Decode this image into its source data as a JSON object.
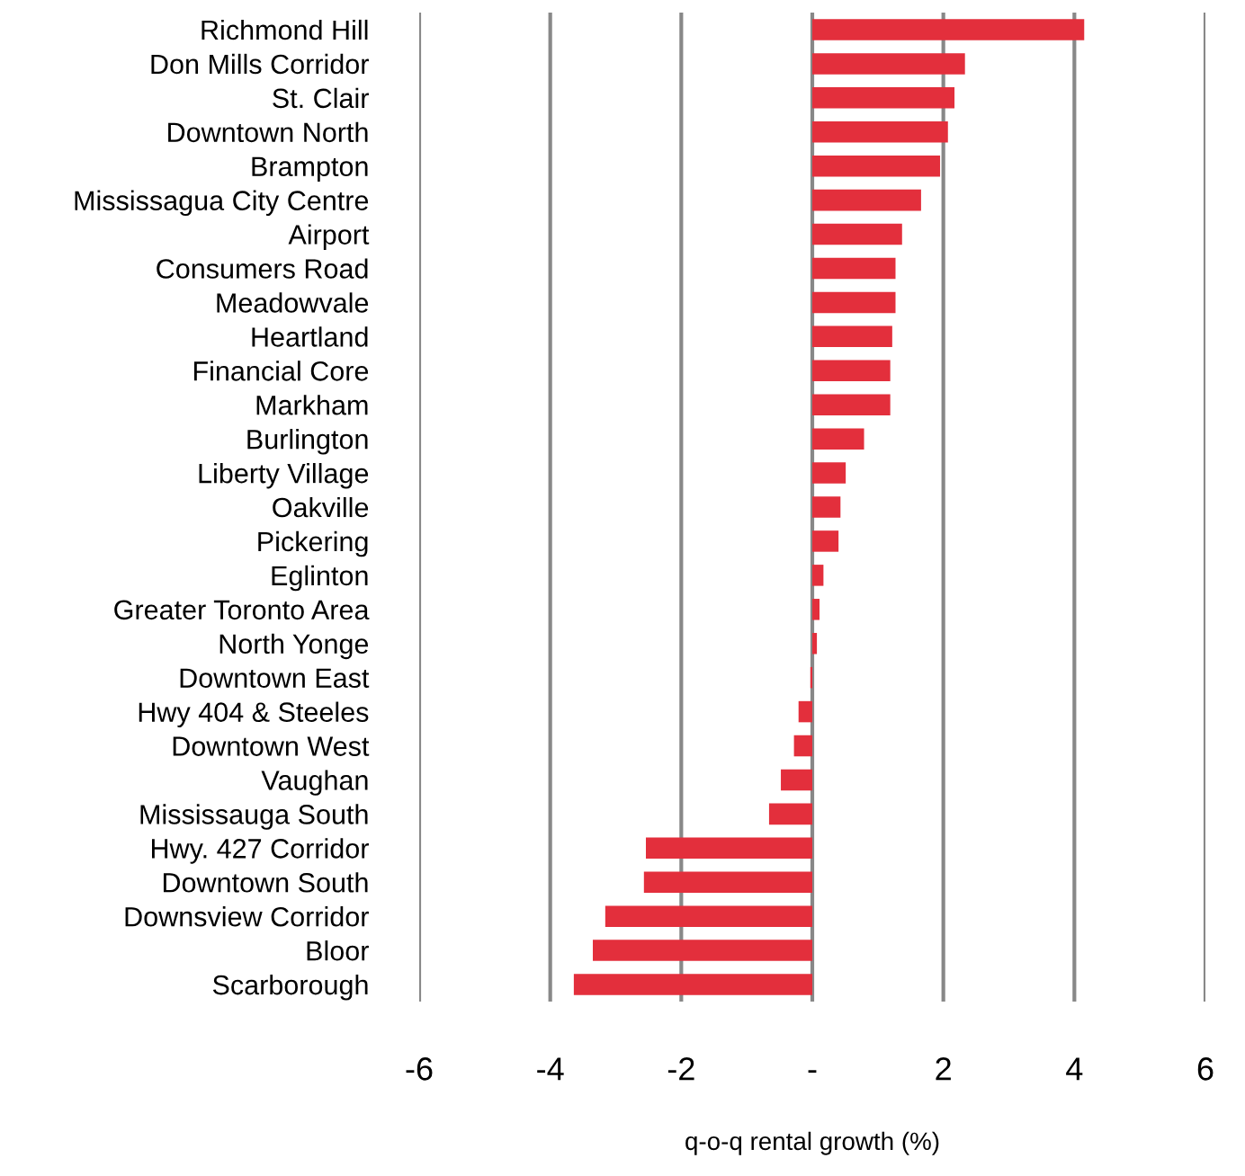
{
  "chart_data": {
    "type": "bar",
    "orientation": "horizontal",
    "xlabel": "q-o-q rental growth (%)",
    "categories": [
      "Richmond Hill",
      "Don Mills Corridor",
      "St. Clair",
      "Downtown North",
      "Brampton",
      "Mississagua City Centre",
      "Airport",
      "Consumers Road",
      "Meadowvale",
      "Heartland",
      "Financial Core",
      "Markham",
      "Burlington",
      "Liberty Village",
      "Oakville",
      "Pickering",
      "Eglinton",
      "Greater Toronto Area",
      "North Yonge",
      "Downtown East",
      "Hwy 404 & Steeles",
      "Downtown West",
      "Vaughan",
      "Mississauga South",
      "Hwy. 427 Corridor",
      "Downtown South",
      "Downsview Corridor",
      "Bloor",
      "Scarborough"
    ],
    "values": [
      4.15,
      2.33,
      2.17,
      2.07,
      1.95,
      1.66,
      1.37,
      1.27,
      1.27,
      1.22,
      1.19,
      1.19,
      0.79,
      0.51,
      0.43,
      0.4,
      0.17,
      0.11,
      0.07,
      -0.03,
      -0.21,
      -0.28,
      -0.48,
      -0.66,
      -2.54,
      -2.57,
      -3.16,
      -3.35,
      -3.64
    ],
    "color": "#e32f3c",
    "xlim": [
      -6,
      6
    ],
    "xticks": [
      -6,
      -4,
      -2,
      {
        "value": 0,
        "label": "-"
      },
      2,
      4,
      6
    ],
    "grid": "x",
    "legend": false
  }
}
